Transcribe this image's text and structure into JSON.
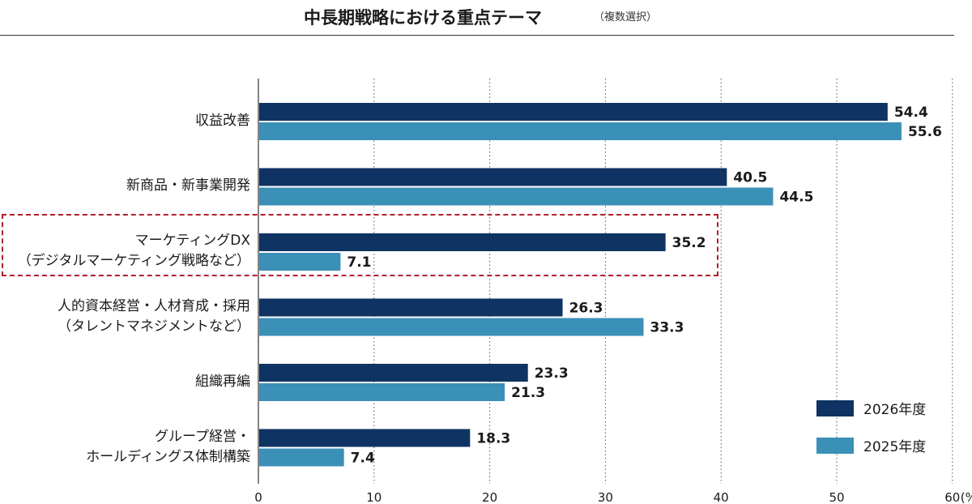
{
  "title": "中長期戦略における重点テーマ",
  "subtitle": "（複数選択）",
  "colors": {
    "series_2026": "#0f3363",
    "series_2025": "#3b90b8",
    "highlight": "#b01e2a",
    "grid": "#555555"
  },
  "legend": [
    {
      "label": "2026年度",
      "color": "#0f3363"
    },
    {
      "label": "2025年度",
      "color": "#3b90b8"
    }
  ],
  "categories": [
    {
      "lines": [
        "収益改善"
      ]
    },
    {
      "lines": [
        "新商品・新事業開発"
      ]
    },
    {
      "lines": [
        "マーケティングDX",
        "（デジタルマーケティング戦略など）"
      ]
    },
    {
      "lines": [
        "人的資本経営・人材育成・採用",
        "（タレントマネジメントなど）"
      ]
    },
    {
      "lines": [
        "組織再編"
      ]
    },
    {
      "lines": [
        "グループ経営・",
        "ホールディングス体制構築"
      ]
    }
  ],
  "chart_data": {
    "type": "bar",
    "orientation": "horizontal",
    "title": "中長期戦略における重点テーマ",
    "subtitle": "（複数選択）",
    "categories": [
      "収益改善",
      "新商品・新事業開発",
      "マーケティングDX（デジタルマーケティング戦略など）",
      "人的資本経営・人材育成・採用（タレントマネジメントなど）",
      "組織再編",
      "グループ経営・ホールディングス体制構築"
    ],
    "series": [
      {
        "name": "2026年度",
        "values": [
          54.4,
          40.5,
          35.2,
          26.3,
          23.3,
          18.3
        ]
      },
      {
        "name": "2025年度",
        "values": [
          55.6,
          44.5,
          7.1,
          33.3,
          21.3,
          7.4
        ]
      }
    ],
    "data_labels": [
      [
        "54.4",
        "40.5",
        "35.2",
        "26.3",
        "23.3",
        "18.3"
      ],
      [
        "55.6",
        "44.5",
        "7.1",
        "33.3",
        "21.3",
        "7.4"
      ]
    ],
    "xlim": [
      0,
      60
    ],
    "ticks": [
      {
        "value": 0,
        "label": "0"
      },
      {
        "value": 10,
        "label": "10"
      },
      {
        "value": 20,
        "label": "20"
      },
      {
        "value": 30,
        "label": "30"
      },
      {
        "value": 40,
        "label": "40"
      },
      {
        "value": 50,
        "label": "50"
      },
      {
        "value": 60,
        "label": "60"
      }
    ],
    "unit_label": "(%)",
    "grid": "vertical dotted",
    "legend_position": "bottom-right",
    "highlighted_category": "マーケティングDX（デジタルマーケティング戦略など）"
  }
}
